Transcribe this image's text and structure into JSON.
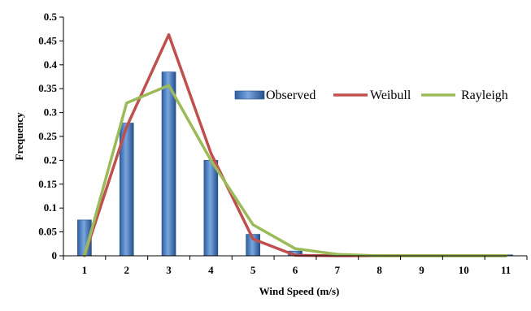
{
  "chart_data": {
    "type": "bar",
    "title": "",
    "xlabel": "Wind Speed (m/s)",
    "ylabel": "Frequency",
    "categories": [
      "1",
      "2",
      "3",
      "4",
      "5",
      "6",
      "7",
      "8",
      "9",
      "10",
      "11"
    ],
    "ylim": [
      0,
      0.5
    ],
    "yticks": [
      "0",
      "0.05",
      "0.1",
      "0.15",
      "0.2",
      "0.25",
      "0.3",
      "0.35",
      "0.4",
      "0.45",
      "0.5"
    ],
    "grid": false,
    "legend_position": "right",
    "series": [
      {
        "name": "Observed",
        "kind": "bar",
        "color": "#3a6fb5",
        "values": [
          0.075,
          0.278,
          0.385,
          0.2,
          0.045,
          0.01,
          0.0,
          0.0,
          0.0,
          0.0,
          0.002
        ]
      },
      {
        "name": "Weibull",
        "kind": "line",
        "color": "#c0504d",
        "values": [
          0.0,
          0.27,
          0.463,
          0.215,
          0.035,
          0.001,
          0.0,
          0.0,
          0.0,
          0.0,
          0.0
        ]
      },
      {
        "name": "Rayleigh",
        "kind": "line",
        "color": "#9bbb59",
        "values": [
          0.0,
          0.32,
          0.357,
          0.2,
          0.065,
          0.015,
          0.003,
          0.0,
          0.0,
          0.0,
          0.0
        ]
      }
    ]
  }
}
